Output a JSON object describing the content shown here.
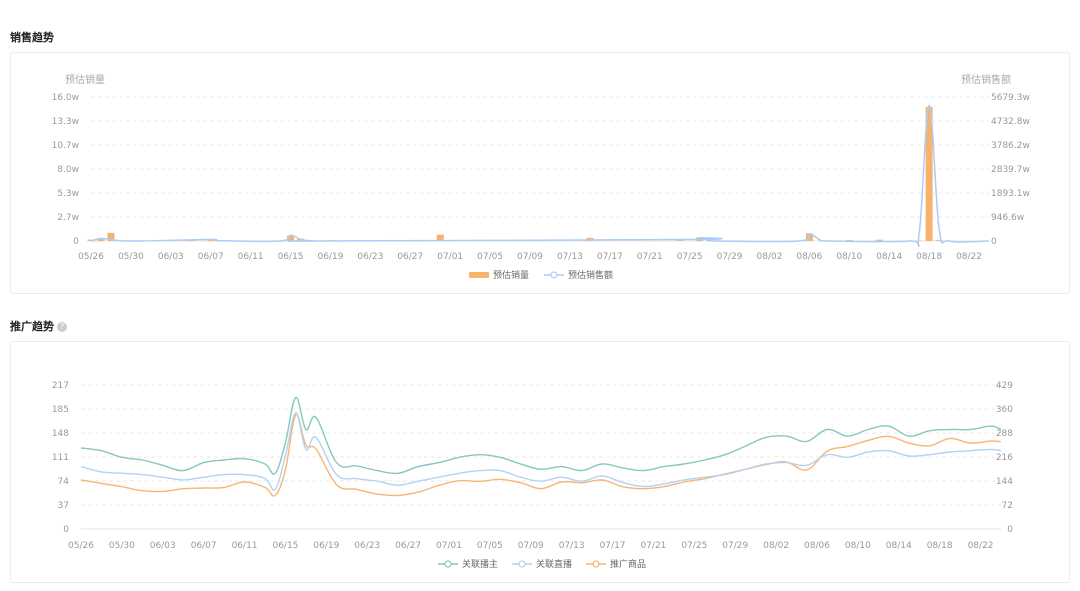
{
  "sales_section": {
    "title": "销售趋势"
  },
  "promo_section": {
    "title": "推广趋势",
    "help_glyph": "?"
  },
  "chart_data": [
    {
      "type": "bar+line",
      "left_axis_title": "预估销量",
      "right_axis_title": "预估销售额",
      "y_ticks": [
        "0",
        "2.7w",
        "5.3w",
        "8.0w",
        "10.7w",
        "13.3w",
        "16.0w"
      ],
      "y2_ticks": [
        "0",
        "946.6w",
        "1893.1w",
        "2839.7w",
        "3786.2w",
        "4732.8w",
        "5679.3w"
      ],
      "ylim": [
        0,
        16
      ],
      "y2lim": [
        0,
        5679.3
      ],
      "x_labels": [
        "05/26",
        "05/30",
        "06/03",
        "06/07",
        "06/11",
        "06/15",
        "06/19",
        "06/23",
        "06/27",
        "07/01",
        "07/05",
        "07/09",
        "07/13",
        "07/17",
        "07/21",
        "07/25",
        "07/29",
        "08/02",
        "08/06",
        "08/10",
        "08/14",
        "08/18",
        "08/22"
      ],
      "start_date": "05/26",
      "end_date": "08/24",
      "grid": true,
      "legend_position": "bottom",
      "colors": {
        "bar": "#f7b26c",
        "line": "#aacdf7"
      },
      "series": [
        {
          "name": "预估销量",
          "kind": "bar",
          "points": [
            [
              "05/26",
              0.15
            ],
            [
              "05/27",
              0.3
            ],
            [
              "05/28",
              0.9
            ],
            [
              "05/29",
              0.1
            ],
            [
              "06/05",
              0.05
            ],
            [
              "06/07",
              0.2
            ],
            [
              "06/08",
              0.1
            ],
            [
              "06/15",
              0.6
            ],
            [
              "06/16",
              0.25
            ],
            [
              "06/17",
              0.1
            ],
            [
              "06/19",
              0.1
            ],
            [
              "06/30",
              0.7
            ],
            [
              "07/15",
              0.35
            ],
            [
              "07/24",
              0.1
            ],
            [
              "07/26",
              0.4
            ],
            [
              "07/27",
              0.1
            ],
            [
              "07/30",
              0.05
            ],
            [
              "08/06",
              0.85
            ],
            [
              "08/10",
              0.1
            ],
            [
              "08/13",
              0.15
            ],
            [
              "08/17",
              0.05
            ],
            [
              "08/18",
              14.9
            ],
            [
              "08/19",
              0.1
            ]
          ]
        },
        {
          "name": "预估销售额",
          "kind": "line",
          "points": [
            [
              "05/26",
              0
            ],
            [
              "05/27",
              100
            ],
            [
              "05/28",
              60
            ],
            [
              "05/29",
              10
            ],
            [
              "05/31",
              0
            ],
            [
              "06/07",
              60
            ],
            [
              "06/08",
              10
            ],
            [
              "06/14",
              0
            ],
            [
              "06/15",
              230
            ],
            [
              "06/16",
              60
            ],
            [
              "06/17",
              10
            ],
            [
              "06/18",
              0
            ],
            [
              "07/25",
              60
            ],
            [
              "07/26",
              130
            ],
            [
              "07/27",
              30
            ],
            [
              "07/28",
              0
            ],
            [
              "08/05",
              0
            ],
            [
              "08/06",
              280
            ],
            [
              "08/07",
              60
            ],
            [
              "08/08",
              0
            ],
            [
              "08/16",
              0
            ],
            [
              "08/17",
              300
            ],
            [
              "08/18",
              5350
            ],
            [
              "08/19",
              500
            ],
            [
              "08/20",
              0
            ],
            [
              "08/24",
              0
            ]
          ]
        }
      ]
    },
    {
      "type": "line",
      "y_ticks": [
        "0",
        "37",
        "74",
        "111",
        "148",
        "185",
        "217"
      ],
      "y2_ticks": [
        "0",
        "72",
        "144",
        "216",
        "288",
        "360",
        "429"
      ],
      "ylim": [
        0,
        217
      ],
      "y2lim": [
        0,
        429
      ],
      "x_labels": [
        "05/26",
        "05/30",
        "06/03",
        "06/07",
        "06/11",
        "06/15",
        "06/19",
        "06/23",
        "06/27",
        "07/01",
        "07/05",
        "07/09",
        "07/13",
        "07/17",
        "07/21",
        "07/25",
        "07/29",
        "08/02",
        "08/06",
        "08/10",
        "08/14",
        "08/18",
        "08/22"
      ],
      "start_date": "05/26",
      "end_date": "08/24",
      "grid": true,
      "legend_position": "bottom",
      "series": [
        {
          "name": "关联播主",
          "color": "#86c9b8",
          "points": [
            [
              "05/26",
              122
            ],
            [
              "05/28",
              118
            ],
            [
              "05/30",
              108
            ],
            [
              "06/01",
              104
            ],
            [
              "06/03",
              96
            ],
            [
              "06/05",
              88
            ],
            [
              "06/07",
              100
            ],
            [
              "06/09",
              104
            ],
            [
              "06/11",
              106
            ],
            [
              "06/13",
              98
            ],
            [
              "06/14",
              84
            ],
            [
              "06/15",
              130
            ],
            [
              "06/16",
              198
            ],
            [
              "06/17",
              150
            ],
            [
              "06/18",
              168
            ],
            [
              "06/20",
              100
            ],
            [
              "06/22",
              95
            ],
            [
              "06/24",
              88
            ],
            [
              "06/26",
              84
            ],
            [
              "06/28",
              94
            ],
            [
              "06/30",
              100
            ],
            [
              "07/02",
              108
            ],
            [
              "07/04",
              112
            ],
            [
              "07/06",
              108
            ],
            [
              "07/08",
              98
            ],
            [
              "07/10",
              90
            ],
            [
              "07/12",
              94
            ],
            [
              "07/14",
              88
            ],
            [
              "07/16",
              98
            ],
            [
              "07/18",
              92
            ],
            [
              "07/20",
              88
            ],
            [
              "07/22",
              94
            ],
            [
              "07/24",
              98
            ],
            [
              "07/26",
              104
            ],
            [
              "07/28",
              112
            ],
            [
              "07/30",
              125
            ],
            [
              "08/01",
              138
            ],
            [
              "08/03",
              140
            ],
            [
              "08/05",
              132
            ],
            [
              "08/07",
              150
            ],
            [
              "08/09",
              140
            ],
            [
              "08/11",
              150
            ],
            [
              "08/13",
              155
            ],
            [
              "08/15",
              140
            ],
            [
              "08/17",
              148
            ],
            [
              "08/19",
              150
            ],
            [
              "08/21",
              150
            ],
            [
              "08/23",
              155
            ],
            [
              "08/24",
              150
            ]
          ]
        },
        {
          "name": "关联直播",
          "color": "#b3d2f5",
          "points": [
            [
              "05/26",
              94
            ],
            [
              "05/28",
              86
            ],
            [
              "05/30",
              84
            ],
            [
              "06/01",
              82
            ],
            [
              "06/03",
              78
            ],
            [
              "06/05",
              74
            ],
            [
              "06/07",
              78
            ],
            [
              "06/09",
              82
            ],
            [
              "06/11",
              82
            ],
            [
              "06/13",
              76
            ],
            [
              "06/14",
              60
            ],
            [
              "06/15",
              110
            ],
            [
              "06/16",
              175
            ],
            [
              "06/17",
              120
            ],
            [
              "06/18",
              138
            ],
            [
              "06/20",
              82
            ],
            [
              "06/22",
              76
            ],
            [
              "06/24",
              72
            ],
            [
              "06/26",
              66
            ],
            [
              "06/28",
              72
            ],
            [
              "06/30",
              78
            ],
            [
              "07/02",
              84
            ],
            [
              "07/04",
              88
            ],
            [
              "07/06",
              88
            ],
            [
              "07/08",
              78
            ],
            [
              "07/10",
              72
            ],
            [
              "07/12",
              78
            ],
            [
              "07/14",
              72
            ],
            [
              "07/16",
              80
            ],
            [
              "07/18",
              70
            ],
            [
              "07/20",
              64
            ],
            [
              "07/22",
              68
            ],
            [
              "07/24",
              74
            ],
            [
              "07/26",
              78
            ],
            [
              "07/28",
              82
            ],
            [
              "07/30",
              90
            ],
            [
              "08/01",
              98
            ],
            [
              "08/03",
              100
            ],
            [
              "08/05",
              96
            ],
            [
              "08/07",
              112
            ],
            [
              "08/09",
              108
            ],
            [
              "08/11",
              116
            ],
            [
              "08/13",
              118
            ],
            [
              "08/15",
              110
            ],
            [
              "08/17",
              112
            ],
            [
              "08/19",
              116
            ],
            [
              "08/21",
              118
            ],
            [
              "08/23",
              120
            ],
            [
              "08/24",
              118
            ]
          ]
        },
        {
          "name": "推广商品",
          "color": "#f7b574",
          "points": [
            [
              "05/26",
              146
            ],
            [
              "05/28",
              136
            ],
            [
              "05/30",
              126
            ],
            [
              "06/01",
              114
            ],
            [
              "06/03",
              112
            ],
            [
              "06/05",
              120
            ],
            [
              "06/07",
              122
            ],
            [
              "06/09",
              124
            ],
            [
              "06/11",
              140
            ],
            [
              "06/13",
              124
            ],
            [
              "06/14",
              100
            ],
            [
              "06/15",
              176
            ],
            [
              "06/16",
              340
            ],
            [
              "06/17",
              250
            ],
            [
              "06/18",
              238
            ],
            [
              "06/20",
              132
            ],
            [
              "06/22",
              118
            ],
            [
              "06/24",
              104
            ],
            [
              "06/26",
              100
            ],
            [
              "06/28",
              110
            ],
            [
              "06/30",
              130
            ],
            [
              "07/02",
              144
            ],
            [
              "07/04",
              142
            ],
            [
              "07/06",
              148
            ],
            [
              "07/08",
              138
            ],
            [
              "07/10",
              120
            ],
            [
              "07/12",
              140
            ],
            [
              "07/14",
              138
            ],
            [
              "07/16",
              146
            ],
            [
              "07/18",
              126
            ],
            [
              "07/20",
              120
            ],
            [
              "07/22",
              126
            ],
            [
              "07/24",
              140
            ],
            [
              "07/26",
              150
            ],
            [
              "07/28",
              164
            ],
            [
              "07/30",
              178
            ],
            [
              "08/01",
              192
            ],
            [
              "08/03",
              200
            ],
            [
              "08/05",
              176
            ],
            [
              "08/07",
              232
            ],
            [
              "08/09",
              246
            ],
            [
              "08/11",
              264
            ],
            [
              "08/13",
              276
            ],
            [
              "08/15",
              256
            ],
            [
              "08/17",
              248
            ],
            [
              "08/19",
              270
            ],
            [
              "08/21",
              256
            ],
            [
              "08/23",
              262
            ],
            [
              "08/24",
              260
            ]
          ]
        }
      ]
    }
  ]
}
